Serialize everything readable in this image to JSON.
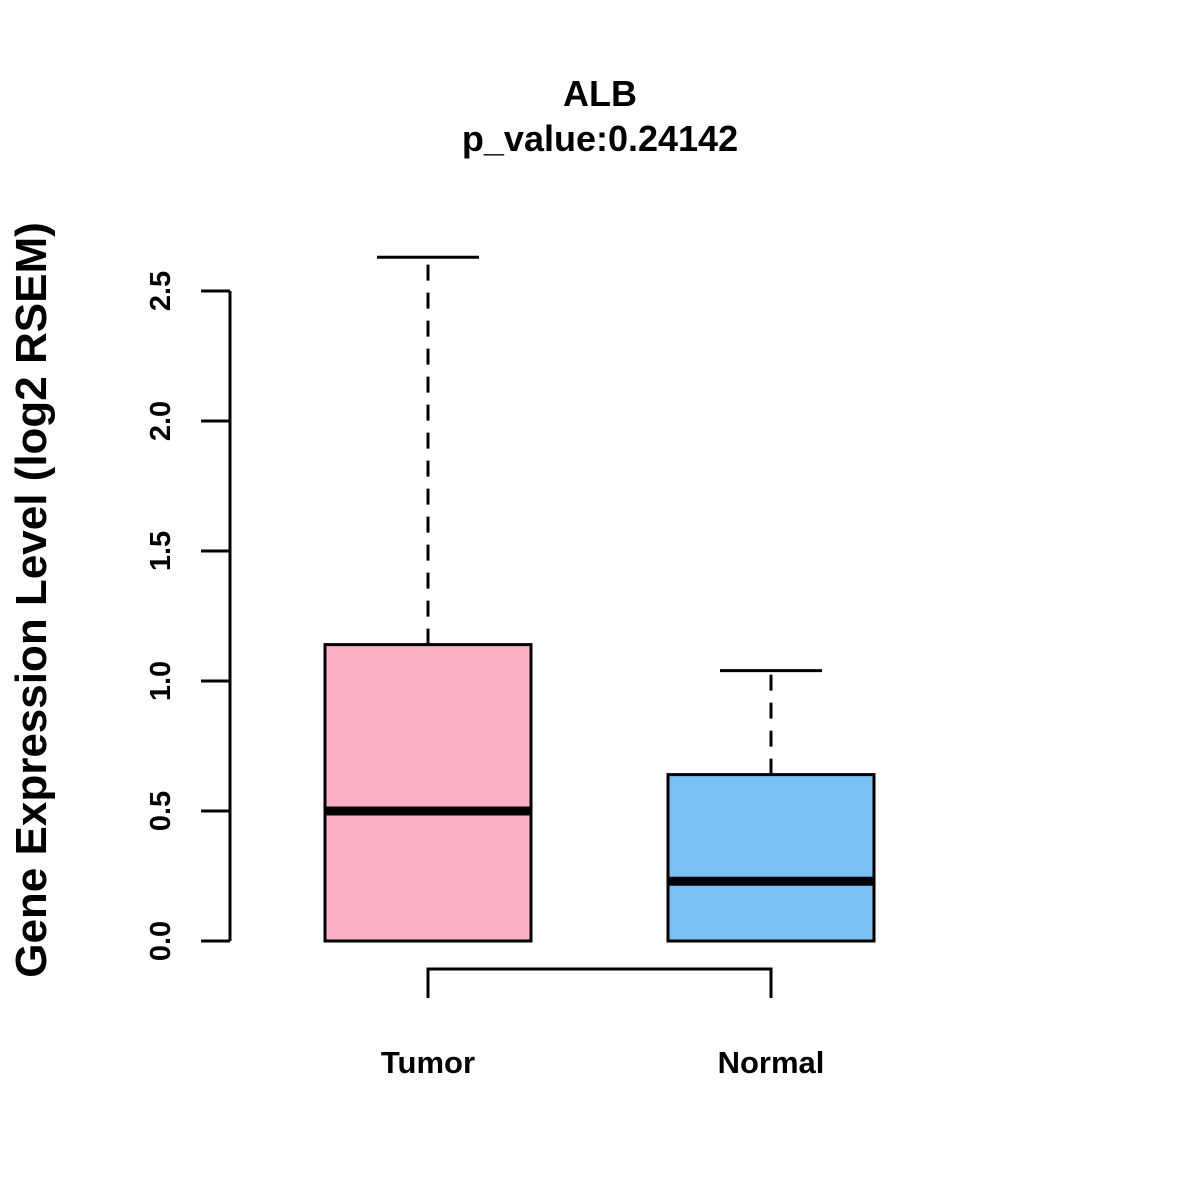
{
  "chart_data": {
    "type": "boxplot",
    "title": "ALB",
    "subtitle": "p_value:0.24142",
    "xlabel": "",
    "ylabel": "Gene Expression Level (log2 RSEM)",
    "ylim": [
      0,
      2.5
    ],
    "yticks": [
      "0.0",
      "0.5",
      "1.0",
      "1.5",
      "2.0",
      "2.5"
    ],
    "categories": [
      "Tumor",
      "Normal"
    ],
    "series": [
      {
        "name": "Tumor",
        "min": 0.0,
        "q1": 0.0,
        "median": 0.5,
        "q3": 1.14,
        "max": 2.63,
        "color": "#FDB0C3"
      },
      {
        "name": "Normal",
        "min": 0.0,
        "q1": 0.0,
        "median": 0.23,
        "q3": 0.64,
        "max": 1.04,
        "color": "#77C1F7"
      }
    ],
    "comparison_bracket": [
      "Tumor",
      "Normal"
    ],
    "grid": false,
    "legend": "none"
  }
}
